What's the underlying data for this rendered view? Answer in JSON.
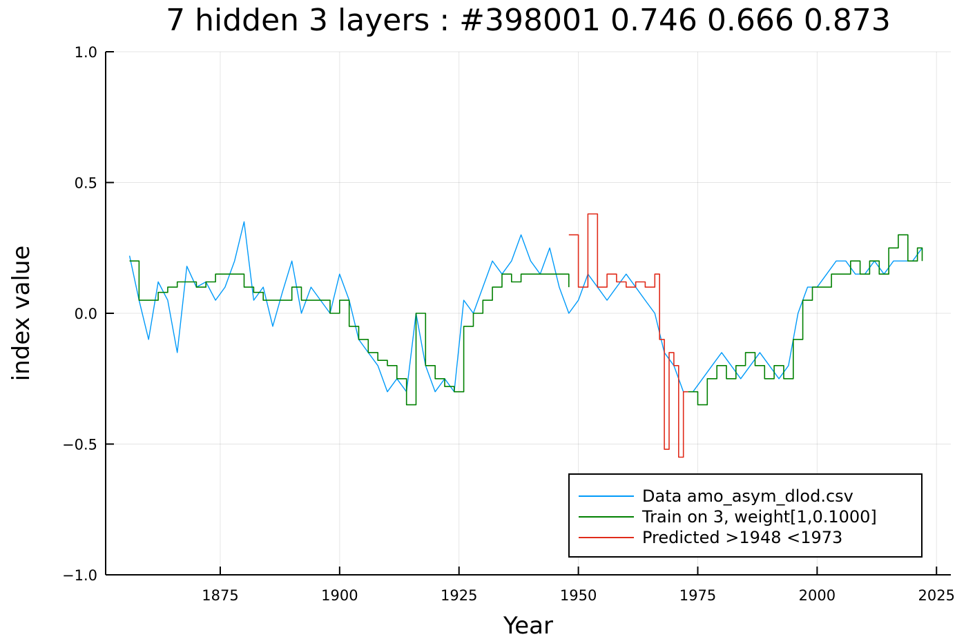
{
  "chart_data": {
    "type": "line",
    "title": "7 hidden 3 layers : #398001 0.746 0.666 0.873",
    "xlabel": "Year",
    "ylabel": "index value",
    "xlim": [
      1851,
      2028
    ],
    "ylim": [
      -1.0,
      1.0
    ],
    "xticks": [
      1875,
      1900,
      1925,
      1950,
      1975,
      2000,
      2025
    ],
    "yticks": [
      -1.0,
      -0.5,
      0.0,
      0.5,
      1.0
    ],
    "ytick_labels": [
      "−1.0",
      "−0.5",
      "0.0",
      "0.5",
      "1.0"
    ],
    "grid": true,
    "legend_position": "bottom-right",
    "series": [
      {
        "name": "Data amo_asym_dlod.csv",
        "color": "#009af9",
        "style": "line",
        "x": [
          1856,
          1858,
          1860,
          1862,
          1864,
          1866,
          1868,
          1870,
          1872,
          1874,
          1876,
          1878,
          1880,
          1882,
          1884,
          1886,
          1888,
          1890,
          1892,
          1894,
          1896,
          1898,
          1900,
          1902,
          1904,
          1906,
          1908,
          1910,
          1912,
          1914,
          1916,
          1918,
          1920,
          1922,
          1924,
          1926,
          1928,
          1930,
          1932,
          1934,
          1936,
          1938,
          1940,
          1942,
          1944,
          1946,
          1948,
          1950,
          1952,
          1954,
          1956,
          1958,
          1960,
          1962,
          1964,
          1966,
          1968,
          1970,
          1972,
          1974,
          1976,
          1978,
          1980,
          1982,
          1984,
          1986,
          1988,
          1990,
          1992,
          1994,
          1996,
          1998,
          2000,
          2002,
          2004,
          2006,
          2008,
          2010,
          2012,
          2014,
          2016,
          2018,
          2020,
          2022
        ],
        "y": [
          0.22,
          0.05,
          -0.1,
          0.12,
          0.05,
          -0.15,
          0.18,
          0.1,
          0.12,
          0.05,
          0.1,
          0.2,
          0.35,
          0.05,
          0.1,
          -0.05,
          0.08,
          0.2,
          0.0,
          0.1,
          0.05,
          0.0,
          0.15,
          0.05,
          -0.1,
          -0.15,
          -0.2,
          -0.3,
          -0.25,
          -0.3,
          0.0,
          -0.2,
          -0.3,
          -0.25,
          -0.3,
          0.05,
          0.0,
          0.1,
          0.2,
          0.15,
          0.2,
          0.3,
          0.2,
          0.15,
          0.25,
          0.1,
          0.0,
          0.05,
          0.15,
          0.1,
          0.05,
          0.1,
          0.15,
          0.1,
          0.05,
          0.0,
          -0.15,
          -0.2,
          -0.3,
          -0.3,
          -0.25,
          -0.2,
          -0.15,
          -0.2,
          -0.25,
          -0.2,
          -0.15,
          -0.2,
          -0.25,
          -0.2,
          0.0,
          0.1,
          0.1,
          0.15,
          0.2,
          0.2,
          0.15,
          0.15,
          0.2,
          0.15,
          0.2,
          0.2,
          0.2,
          0.25
        ]
      },
      {
        "name": "Train on 3, weight[1,0.1000]",
        "color": "#008000",
        "style": "step",
        "x": [
          1856,
          1858,
          1860,
          1862,
          1864,
          1866,
          1868,
          1870,
          1872,
          1874,
          1876,
          1878,
          1880,
          1882,
          1884,
          1886,
          1888,
          1890,
          1892,
          1894,
          1896,
          1898,
          1900,
          1902,
          1904,
          1906,
          1908,
          1910,
          1912,
          1914,
          1916,
          1918,
          1920,
          1922,
          1924,
          1926,
          1928,
          1930,
          1932,
          1934,
          1936,
          1938,
          1940,
          1942,
          1944,
          1946,
          1948
        ],
        "y": [
          0.2,
          0.05,
          0.05,
          0.08,
          0.1,
          0.12,
          0.12,
          0.1,
          0.12,
          0.15,
          0.15,
          0.15,
          0.1,
          0.08,
          0.05,
          0.05,
          0.05,
          0.1,
          0.05,
          0.05,
          0.05,
          0.0,
          0.05,
          -0.05,
          -0.1,
          -0.15,
          -0.18,
          -0.2,
          -0.25,
          -0.35,
          0.0,
          -0.2,
          -0.25,
          -0.28,
          -0.3,
          -0.05,
          0.0,
          0.05,
          0.1,
          0.15,
          0.12,
          0.15,
          0.15,
          0.15,
          0.15,
          0.15,
          0.1
        ]
      },
      {
        "name": "Predicted >1948 <1973",
        "color": "#e02b1a",
        "style": "step",
        "x": [
          1948,
          1950,
          1952,
          1954,
          1956,
          1958,
          1960,
          1962,
          1964,
          1966,
          1967,
          1968,
          1969,
          1970,
          1971,
          1972,
          1973
        ],
        "y": [
          0.3,
          0.1,
          0.38,
          0.1,
          0.15,
          0.12,
          0.1,
          0.12,
          0.1,
          0.15,
          -0.1,
          -0.52,
          -0.15,
          -0.2,
          -0.55,
          -0.3,
          -0.3
        ]
      },
      {
        "name": "",
        "color": "#008000",
        "style": "step",
        "x": [
          1973,
          1975,
          1977,
          1979,
          1981,
          1983,
          1985,
          1987,
          1989,
          1991,
          1993,
          1995,
          1997,
          1999,
          2001,
          2003,
          2005,
          2007,
          2009,
          2011,
          2013,
          2015,
          2017,
          2019,
          2021,
          2022
        ],
        "y": [
          -0.3,
          -0.35,
          -0.25,
          -0.2,
          -0.25,
          -0.2,
          -0.15,
          -0.2,
          -0.25,
          -0.2,
          -0.25,
          -0.1,
          0.05,
          0.1,
          0.1,
          0.15,
          0.15,
          0.2,
          0.15,
          0.2,
          0.15,
          0.25,
          0.3,
          0.2,
          0.25,
          0.2
        ]
      }
    ]
  }
}
